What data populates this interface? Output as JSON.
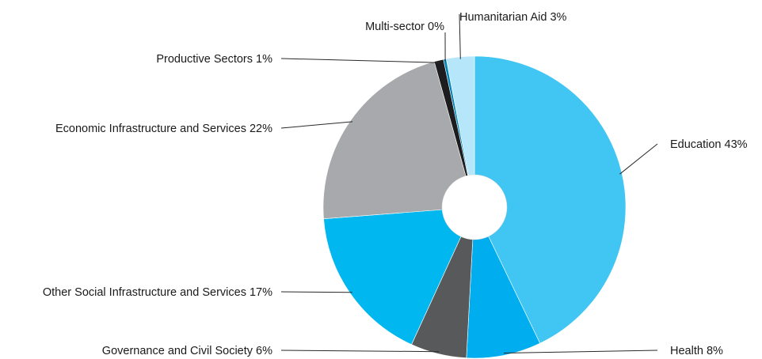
{
  "chart_data": {
    "type": "pie",
    "style": "donut",
    "title": "",
    "slices": [
      {
        "label": "Education 43%",
        "value": 43,
        "color": "#41c6f3"
      },
      {
        "label": "Health 8%",
        "value": 8,
        "color": "#00adee"
      },
      {
        "label": "Governance and Civil Society 6%",
        "value": 6,
        "color": "#58595b"
      },
      {
        "label": "Other Social Infrastructure and Services 17%",
        "value": 17,
        "color": "#00b7ef"
      },
      {
        "label": "Economic Infrastructure and Services 22%",
        "value": 22,
        "color": "#a7a9ac"
      },
      {
        "label": "Productive Sectors 1%",
        "value": 1,
        "color": "#1d1d1f"
      },
      {
        "label": "Multi-sector 0%",
        "value": 0.3,
        "color": "#0083b8"
      },
      {
        "label": "Humanitarian Aid 3%",
        "value": 3,
        "color": "#b6e6fa"
      }
    ],
    "legend": "none",
    "labels": "outside with leader lines"
  }
}
